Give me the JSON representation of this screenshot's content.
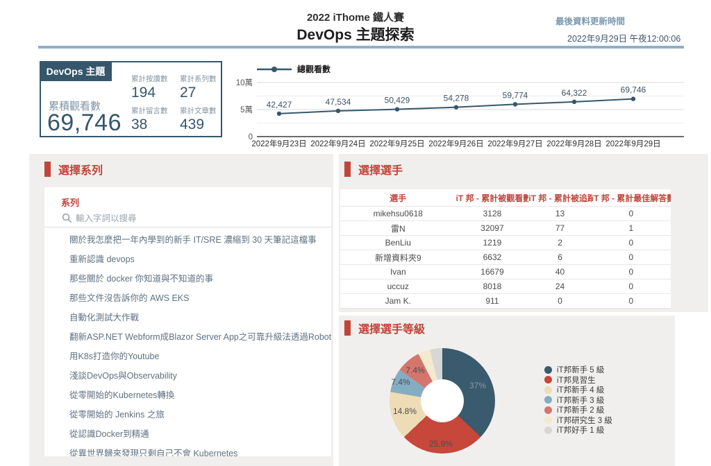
{
  "header": {
    "subtitle": "2022 iThome 鐵人賽",
    "title": "DevOps 主題探索",
    "last_update": {
      "label": "最後資料更新時間",
      "value": "2022年9月29日 午夜12:00:06"
    }
  },
  "summary": {
    "badge": "DevOps 主題",
    "main_label": "累積觀看數",
    "main_value": "69,746",
    "stats": [
      {
        "label": "累計按讚數",
        "value": "194"
      },
      {
        "label": "累計系列數",
        "value": "27"
      },
      {
        "label": "累計留言數",
        "value": "38"
      },
      {
        "label": "累計文章數",
        "value": "439"
      }
    ]
  },
  "chart_data": [
    {
      "type": "line",
      "title": "總觀看數",
      "legend": [
        "總觀看數"
      ],
      "x": [
        "2022年9月23日",
        "2022年9月24日",
        "2022年9月25日",
        "2022年9月26日",
        "2022年9月27日",
        "2022年9月28日",
        "2022年9月29日"
      ],
      "y": [
        42427,
        47534,
        50429,
        54278,
        59774,
        64322,
        69746
      ],
      "point_labels": [
        "42,427",
        "47,534",
        "50,429",
        "54,278",
        "59,774",
        "64,322",
        "69,746"
      ],
      "ylim": [
        0,
        100000
      ],
      "yticks": [
        {
          "v": 0,
          "label": "0"
        },
        {
          "v": 50000,
          "label": "5萬"
        },
        {
          "v": 100000,
          "label": "10萬"
        }
      ],
      "minor_gridlines": [
        25000,
        75000
      ],
      "grid": true,
      "line_color": "#35566b",
      "legend_position": "top-left"
    },
    {
      "type": "pie",
      "donut": true,
      "title": "選擇選手等級",
      "labels": [
        "iT邦新手 5 級",
        "iT邦見習生",
        "iT邦新手 4 級",
        "iT邦新手 3 級",
        "iT邦新手 2 級",
        "iT邦研究生 3 級",
        "iT邦好手 1 級"
      ],
      "values": [
        37,
        25.9,
        14.8,
        7.4,
        7.4,
        3.7,
        3.7
      ],
      "shown_labels": [
        "37%",
        "25.9%",
        "14.8%",
        "7.4%",
        "7.4%",
        "",
        ""
      ],
      "colors": [
        "#3a5a6e",
        "#c7473a",
        "#eedcb6",
        "#85adc2",
        "#d4766d",
        "#f5e9cf",
        "#d7d7d5"
      ],
      "legend_position": "right"
    }
  ],
  "series_section": {
    "title": "選擇系列",
    "card_title": "系列",
    "search_placeholder": "輸入字詞以搜尋",
    "items": [
      "關於我怎麼把一年內學到的新手 IT/SRE 濃縮到 30 天筆記這檔事",
      "重新認識 devops",
      "那些關於 docker 你知道與不知道的事",
      "那些文件沒告訴你的 AWS EKS",
      "自動化測試大作戰",
      "翻新ASP.NET Webform成Blazor Server App之可靠升級法透過Robot framework",
      "用K8s打造你的Youtube",
      "淺談DevOps與Observability",
      "從零開始的Kubernetes轉換",
      "從零開始的 Jenkins 之旅",
      "從認識Docker到精通",
      "從異世界歸來發現只剩自己不會 Kubernetes"
    ]
  },
  "players_section": {
    "title": "選擇選手",
    "columns": [
      "選手",
      "iT 邦 - 累計被觀看數",
      "iT 邦 - 累計被追蹤數",
      "iT 邦 - 累計最佳解答數"
    ],
    "rows": [
      [
        "mikehsu0618",
        "3128",
        "13",
        "0"
      ],
      [
        "雷N",
        "32097",
        "77",
        "1"
      ],
      [
        "BenLiu",
        "1219",
        "2",
        "0"
      ],
      [
        "新增資料夾9",
        "6632",
        "6",
        "0"
      ],
      [
        "Ivan",
        "16679",
        "40",
        "0"
      ],
      [
        "uccuz",
        "8018",
        "24",
        "0"
      ],
      [
        "Jam K.",
        "911",
        "0",
        "0"
      ]
    ]
  },
  "levels_section": {
    "title": "選擇選手等級"
  },
  "colors": {
    "accent_red": "#c0443a",
    "dark_slate": "#35566b",
    "header_divider": "#8fb0c6",
    "panel_gray": "#f0efed",
    "muted_label": "#7f93a5",
    "update_label": "#7e99b1",
    "update_value": "#3f5468"
  }
}
